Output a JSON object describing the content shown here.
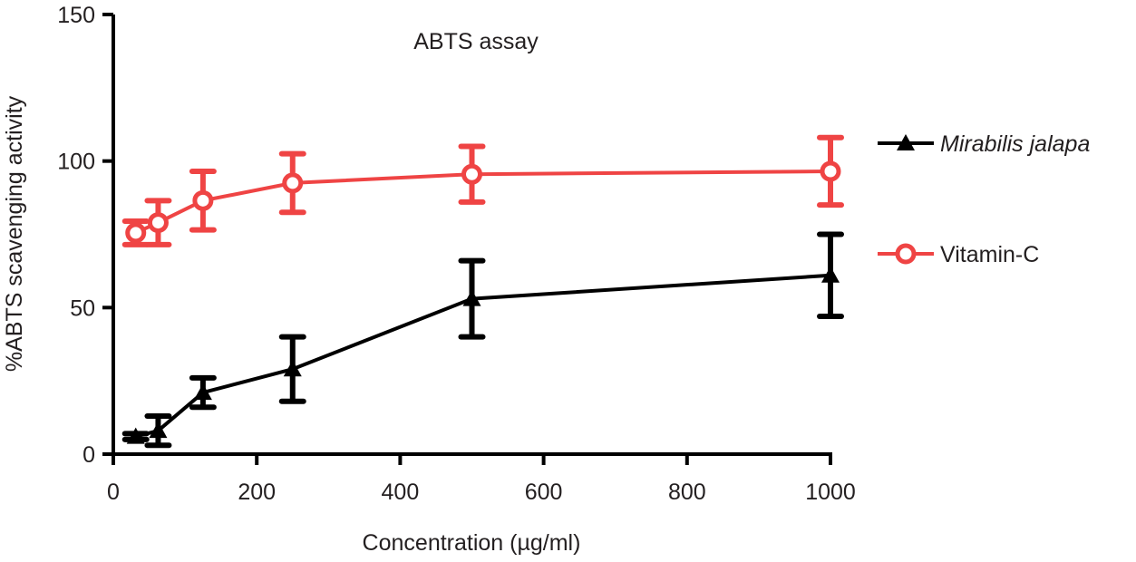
{
  "chart_data": {
    "type": "line",
    "title": "ABTS assay",
    "xlabel": "Concentration (µg/ml)",
    "ylabel": "%ABTS scavenging activity",
    "xlim": [
      0,
      1000
    ],
    "ylim": [
      0,
      150
    ],
    "xticks": [
      0,
      200,
      400,
      600,
      800,
      1000
    ],
    "yticks": [
      0,
      50,
      100,
      150
    ],
    "grid": false,
    "legend_position": "right",
    "x": [
      31.25,
      62.5,
      125,
      250,
      500,
      1000
    ],
    "series": [
      {
        "name": "Mirabilis jalapa",
        "italic": true,
        "color": "#000000",
        "marker": "filled-triangle",
        "values": [
          6,
          8,
          21,
          29,
          53,
          61
        ],
        "errors": [
          1,
          5,
          5,
          11,
          13,
          14
        ]
      },
      {
        "name": "Vitamin-C",
        "italic": false,
        "color": "#ef4444",
        "marker": "open-circle",
        "values": [
          75.5,
          79,
          86.5,
          92.5,
          95.5,
          96.5
        ],
        "errors": [
          4,
          7.5,
          10,
          10,
          9.5,
          11.5
        ]
      }
    ]
  }
}
